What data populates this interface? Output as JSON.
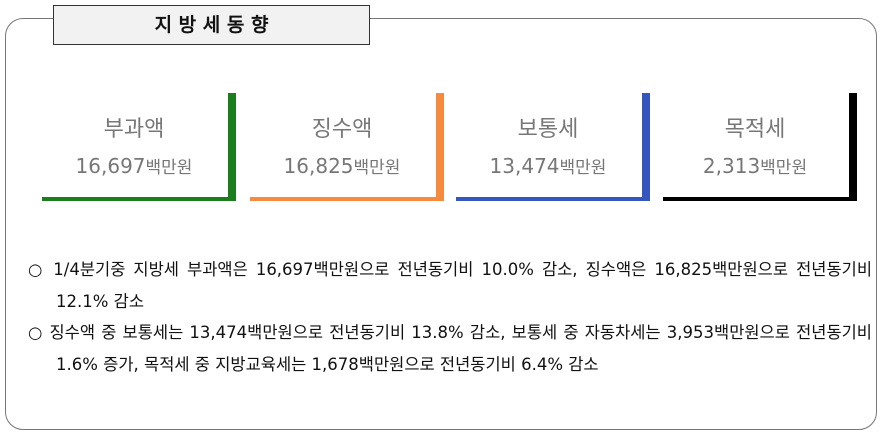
{
  "header": {
    "title": "지 방 세 동 향"
  },
  "cards": [
    {
      "label": "부과액",
      "value": "16,697",
      "unit": "백만원",
      "color": "#1b7d1b"
    },
    {
      "label": "징수액",
      "value": "16,825",
      "unit": "백만원",
      "color": "#f68b3f"
    },
    {
      "label": "보통세",
      "value": "13,474",
      "unit": "백만원",
      "color": "#3556bd"
    },
    {
      "label": "목적세",
      "value": "2,313",
      "unit": "백만원",
      "color": "#000000"
    }
  ],
  "bullets": [
    "○ 1/4분기중 지방세 부과액은 16,697백만원으로 전년동기비 10.0% 감소, 징수액은 16,825백만원으로 전년동기비 12.1% 감소",
    "○ 징수액 중 보통세는 13,474백만원으로 전년동기비 13.8% 감소, 보통세 중 자동차세는 3,953백만원으로 전년동기비 1.6% 증가, 목적세 중 지방교육세는 1,678백만원으로 전년동기비 6.4% 감소"
  ]
}
